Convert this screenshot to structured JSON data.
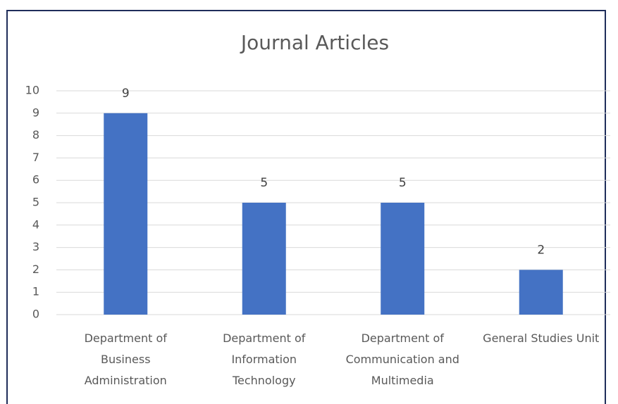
{
  "chart_data": {
    "type": "bar",
    "title": "Journal Articles",
    "categories": [
      "Department of Business Administration",
      "Department of Information Technology",
      "Department of Communication and Multimedia",
      "General Studies Unit"
    ],
    "values": [
      9,
      5,
      5,
      2
    ],
    "color": "#4472c4",
    "ylim": [
      0,
      10
    ],
    "yticks": [
      0,
      1,
      2,
      3,
      4,
      5,
      6,
      7,
      8,
      9,
      10
    ],
    "grid": true
  }
}
